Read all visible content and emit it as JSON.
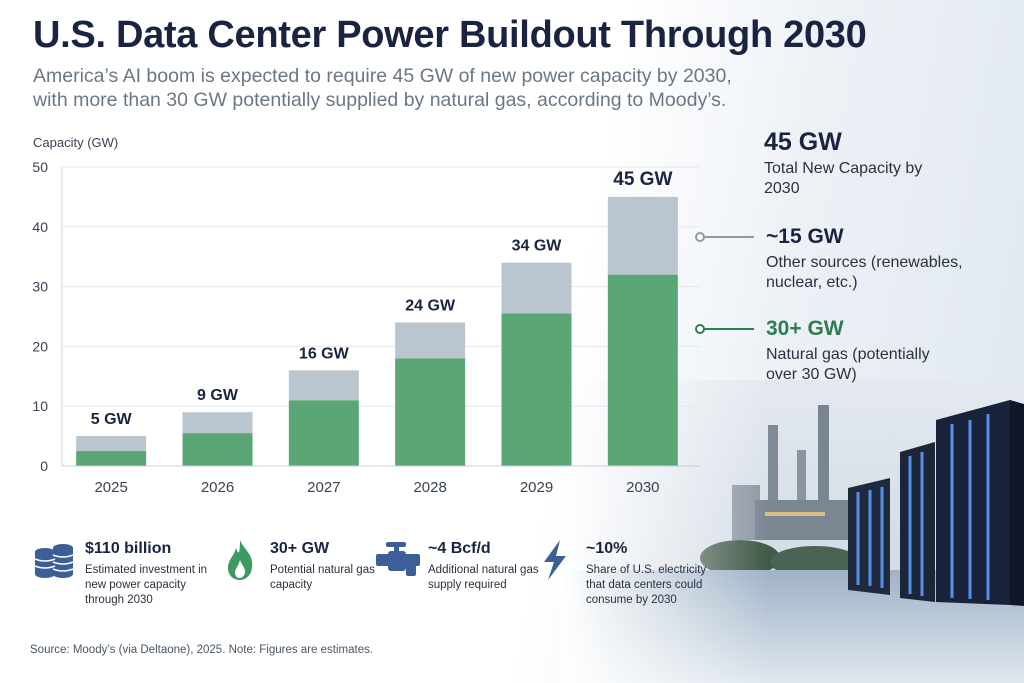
{
  "header": {
    "title": "U.S. Data Center Power Buildout Through 2030",
    "subtitle": "America’s AI boom is expected to require 45 GW of new power capacity by 2030, with more than 30 GW potentially supplied by natural gas, according to Moody’s."
  },
  "chart_data": {
    "type": "bar",
    "stacked": true,
    "ylabel": "Capacity (GW)",
    "ylim": [
      0,
      50
    ],
    "yticks": [
      0,
      10,
      20,
      30,
      40,
      50
    ],
    "grid": true,
    "categories": [
      "2025",
      "2026",
      "2027",
      "2028",
      "2029",
      "2030"
    ],
    "series": [
      {
        "values": [
          2.5,
          5.5,
          11,
          18,
          25.5,
          32
        ],
        "color": "#5aa675"
      },
      {
        "values": [
          2.5,
          3.5,
          5,
          6,
          8.5,
          13
        ],
        "color": "#b9c5cf"
      }
    ],
    "totals": [
      5,
      9,
      16,
      24,
      34,
      45
    ],
    "bar_labels": [
      "5 GW",
      "9 GW",
      "16 GW",
      "24 GW",
      "34 GW",
      "45 GW"
    ]
  },
  "callouts": {
    "total": {
      "value": "45 GW",
      "label": "Total New Capacity by 2030"
    },
    "other": {
      "value": "~15 GW",
      "label": "Other sources (renewables, nuclear, etc.)"
    },
    "gas": {
      "value": "30+ GW",
      "label": "Natural gas (potentially over 30 GW)"
    }
  },
  "stats": [
    {
      "icon": "coin-stack-icon",
      "value": "$110 billion",
      "label": "Estimated investment in new power capacity through 2030"
    },
    {
      "icon": "flame-icon",
      "value": "30+ GW",
      "label": "Potential natural gas capacity"
    },
    {
      "icon": "gas-valve-icon",
      "value": "~4 Bcf/d",
      "label": "Additional natural gas supply required"
    },
    {
      "icon": "lightning-bolt-icon",
      "value": "~10%",
      "label": "Share of U.S. electricity that data centers could consume by 2030"
    }
  ],
  "source": "Source: Moody’s (via Deltaone), 2025. Note: Figures are estimates.",
  "colors": {
    "gas": "#5aa675",
    "other": "#b9c5cf",
    "accent_green": "#2e7d4f",
    "navy": "#1a2440",
    "icon_blue": "#3b5f96"
  }
}
